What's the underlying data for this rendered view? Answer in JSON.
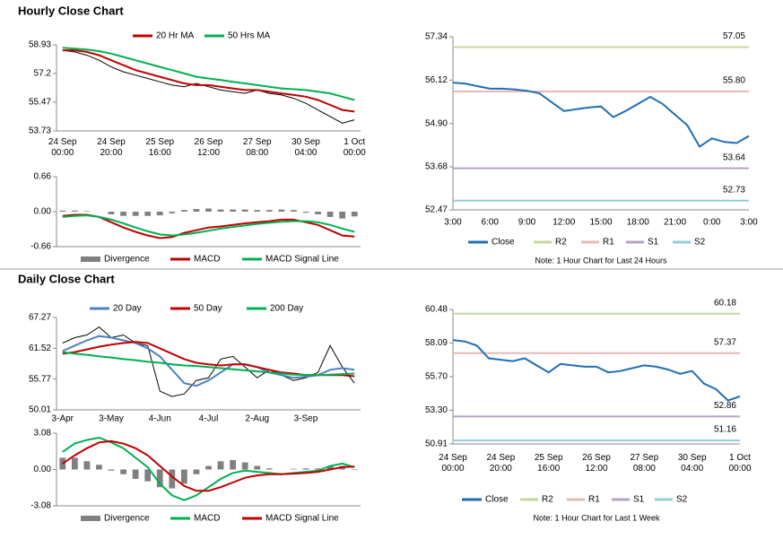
{
  "chart_data": [
    {
      "type": "line",
      "title": "Hourly Close Chart",
      "categories": [
        "24 Sep\n00:00",
        null,
        null,
        null,
        "24 Sep\n20:00",
        null,
        null,
        null,
        "25 Sep\n16:00",
        null,
        null,
        null,
        "26 Sep\n12:00",
        null,
        null,
        null,
        "27 Sep\n08:00",
        null,
        null,
        null,
        "30 Sep\n04:00",
        null,
        null,
        null,
        "1 Oct\n00:00"
      ],
      "ylim": [
        53.73,
        58.93
      ],
      "yticks": [
        53.73,
        55.47,
        57.2,
        58.93
      ],
      "series": [
        {
          "color": "#000000",
          "values": [
            58.6,
            58.5,
            58.3,
            58.0,
            57.6,
            57.3,
            57.1,
            56.9,
            56.7,
            56.5,
            56.4,
            56.6,
            56.4,
            56.2,
            56.1,
            56.0,
            56.2,
            56.0,
            55.9,
            55.7,
            55.4,
            55.0,
            54.6,
            54.2,
            54.4
          ]
        },
        {
          "name": "20 Hr MA",
          "color": "#c00000",
          "values": [
            58.6,
            58.6,
            58.5,
            58.3,
            58.0,
            57.7,
            57.4,
            57.2,
            57.0,
            56.8,
            56.6,
            56.5,
            56.5,
            56.4,
            56.3,
            56.2,
            56.2,
            56.1,
            56.0,
            55.9,
            55.8,
            55.6,
            55.3,
            55.0,
            54.9
          ]
        },
        {
          "name": "50 Hrs MA",
          "color": "#00b050",
          "values": [
            58.75,
            58.7,
            58.65,
            58.55,
            58.4,
            58.2,
            58.0,
            57.8,
            57.6,
            57.4,
            57.2,
            57.0,
            56.9,
            56.8,
            56.7,
            56.6,
            56.5,
            56.4,
            56.3,
            56.25,
            56.2,
            56.1,
            56.0,
            55.8,
            55.6
          ]
        }
      ]
    },
    {
      "type": "line",
      "ylim": [
        -0.66,
        0.66
      ],
      "yticks": [
        -0.66,
        {
          "value": 0,
          "label": "0.00"
        },
        0.66
      ],
      "series": [
        {
          "name": "Divergence",
          "kind": "bar",
          "color": "#808080",
          "values": [
            0.02,
            0.02,
            0.01,
            0,
            -0.05,
            -0.08,
            -0.08,
            -0.08,
            -0.07,
            -0.03,
            0.03,
            0.05,
            0.06,
            0.04,
            0.04,
            0.04,
            0.03,
            0.03,
            0.04,
            0.03,
            -0.02,
            -0.05,
            -0.1,
            -0.13,
            -0.09
          ]
        },
        {
          "name": "MACD",
          "color": "#c00000",
          "values": [
            -0.08,
            -0.06,
            -0.06,
            -0.1,
            -0.2,
            -0.3,
            -0.38,
            -0.45,
            -0.5,
            -0.48,
            -0.4,
            -0.35,
            -0.3,
            -0.28,
            -0.25,
            -0.22,
            -0.2,
            -0.18,
            -0.15,
            -0.15,
            -0.2,
            -0.25,
            -0.35,
            -0.45,
            -0.47
          ]
        },
        {
          "name": "MACD Signal Line",
          "color": "#00b050",
          "values": [
            -0.1,
            -0.08,
            -0.07,
            -0.1,
            -0.15,
            -0.22,
            -0.3,
            -0.37,
            -0.43,
            -0.45,
            -0.43,
            -0.4,
            -0.36,
            -0.32,
            -0.29,
            -0.26,
            -0.23,
            -0.21,
            -0.19,
            -0.18,
            -0.18,
            -0.2,
            -0.25,
            -0.32,
            -0.38
          ]
        }
      ]
    },
    {
      "type": "line",
      "note": "Note: 1 Hour Chart for Last 24 Hours",
      "categories": [
        "3:00",
        null,
        null,
        "6:00",
        null,
        null,
        "9:00",
        null,
        null,
        "12:00",
        null,
        null,
        "15:00",
        null,
        null,
        "18:00",
        null,
        null,
        "21:00",
        null,
        null,
        "0:00",
        null,
        null,
        "3:00"
      ],
      "ylim": [
        52.47,
        57.34
      ],
      "yticks": [
        52.47,
        53.68,
        {
          "value": 54.9,
          "label": "54.90"
        },
        56.12,
        57.34
      ],
      "series": [
        {
          "name": "Close",
          "color": "#1f6fb2",
          "values": [
            56.05,
            56.02,
            55.95,
            55.88,
            55.88,
            55.86,
            55.82,
            55.75,
            55.5,
            55.25,
            55.3,
            55.35,
            55.38,
            55.08,
            55.25,
            55.45,
            55.65,
            55.45,
            55.15,
            54.85,
            54.25,
            54.48,
            54.38,
            54.35,
            54.55
          ]
        }
      ],
      "levels": [
        {
          "name": "R2",
          "color": "#c4d79b",
          "value": 57.05,
          "label": "57.05"
        },
        {
          "name": "R1",
          "color": "#e6b9b8",
          "value": 55.8,
          "label": "55.80"
        },
        {
          "name": "S1",
          "color": "#b3a2c7",
          "value": 53.64,
          "label": "53.64"
        },
        {
          "name": "S2",
          "color": "#93cddd",
          "value": 52.73,
          "label": "52.73"
        }
      ]
    },
    {
      "type": "line",
      "title": "Daily Close Chart",
      "categories": [
        "3-Apr",
        null,
        null,
        null,
        "3-May",
        null,
        null,
        null,
        "4-Jun",
        null,
        null,
        null,
        "4-Jul",
        null,
        null,
        null,
        "2-Aug",
        null,
        null,
        null,
        "3-Sep",
        null,
        null,
        null,
        null
      ],
      "ylim": [
        50.01,
        67.27
      ],
      "yticks": [
        50.01,
        55.77,
        61.52,
        67.27
      ],
      "series": [
        {
          "color": "#000000",
          "values": [
            62.5,
            63.5,
            64.0,
            65.5,
            63.5,
            64.0,
            62.5,
            62.0,
            53.5,
            52.5,
            53.0,
            55.5,
            56.0,
            59.5,
            60.0,
            58.0,
            56.0,
            57.5,
            56.5,
            55.5,
            56.0,
            57.0,
            62.0,
            58.0,
            55.0
          ]
        },
        {
          "name": "20 Day",
          "color": "#4f81bd",
          "values": [
            61.0,
            62.0,
            63.0,
            63.8,
            63.5,
            63.0,
            62.5,
            61.5,
            60.0,
            57.5,
            55.0,
            54.5,
            55.5,
            57.0,
            58.5,
            58.5,
            58.0,
            57.0,
            56.5,
            56.0,
            56.2,
            56.5,
            57.5,
            57.8,
            57.5
          ]
        },
        {
          "name": "50 Day",
          "color": "#c00000",
          "values": [
            60.5,
            60.8,
            61.3,
            61.8,
            62.2,
            62.5,
            62.7,
            62.5,
            61.5,
            60.5,
            59.5,
            58.8,
            58.5,
            58.3,
            58.5,
            58.5,
            58.0,
            57.5,
            57.0,
            56.8,
            56.5,
            56.5,
            56.5,
            56.5,
            56.3
          ]
        },
        {
          "name": "200 Day",
          "color": "#00b050",
          "values": [
            60.8,
            60.5,
            60.3,
            60.0,
            59.8,
            59.5,
            59.3,
            59.0,
            58.8,
            58.5,
            58.3,
            58.2,
            58.0,
            57.8,
            57.6,
            57.4,
            57.2,
            57.0,
            56.8,
            56.6,
            56.5,
            56.5,
            56.6,
            56.7,
            56.8
          ]
        }
      ]
    },
    {
      "type": "line",
      "ylim": [
        -3.08,
        3.08
      ],
      "yticks": [
        -3.08,
        {
          "value": 0,
          "label": "0.00"
        },
        3.08
      ],
      "series": [
        {
          "name": "Divergence",
          "kind": "bar",
          "color": "#808080",
          "values": [
            1.0,
            1.0,
            0.7,
            0.4,
            -0.1,
            -0.4,
            -0.8,
            -1.0,
            -1.5,
            -1.6,
            -1.2,
            -0.4,
            0.3,
            0.7,
            0.8,
            0.6,
            0.3,
            0.1,
            0.0,
            0.05,
            0.1,
            0.1,
            0.3,
            0.3,
            -0.05
          ]
        },
        {
          "name": "MACD",
          "color": "#00b050",
          "values": [
            1.5,
            2.2,
            2.5,
            2.7,
            2.3,
            1.8,
            1.0,
            0.2,
            -1.2,
            -2.2,
            -2.6,
            -2.2,
            -1.5,
            -0.8,
            -0.3,
            -0.1,
            -0.2,
            -0.3,
            -0.4,
            -0.3,
            -0.2,
            -0.1,
            0.3,
            0.5,
            0.2
          ]
        },
        {
          "name": "MACD Signal Line",
          "color": "#c00000",
          "values": [
            0.5,
            1.2,
            1.8,
            2.3,
            2.4,
            2.2,
            1.8,
            1.2,
            0.3,
            -0.6,
            -1.4,
            -1.8,
            -1.8,
            -1.5,
            -1.1,
            -0.7,
            -0.5,
            -0.4,
            -0.4,
            -0.35,
            -0.3,
            -0.2,
            0.0,
            0.2,
            0.25
          ]
        }
      ]
    },
    {
      "type": "line",
      "note": "Note: 1 Hour Chart for Last 1 Week",
      "categories": [
        "24 Sep\n00:00",
        null,
        null,
        null,
        "24 Sep\n20:00",
        null,
        null,
        null,
        "25 Sep\n16:00",
        null,
        null,
        null,
        "26 Sep\n12:00",
        null,
        null,
        null,
        "27 Sep\n08:00",
        null,
        null,
        null,
        "30 Sep\n04:00",
        null,
        null,
        null,
        "1 Oct\n00:00"
      ],
      "ylim": [
        50.91,
        60.48
      ],
      "yticks": [
        50.91,
        {
          "value": 53.3,
          "label": "53.30"
        },
        {
          "value": 55.7,
          "label": "55.70"
        },
        58.09,
        60.48
      ],
      "series": [
        {
          "name": "Close",
          "color": "#1f6fb2",
          "values": [
            58.3,
            58.2,
            57.9,
            57.0,
            56.9,
            56.8,
            57.0,
            56.5,
            56.0,
            56.6,
            56.5,
            56.4,
            56.4,
            56.0,
            56.1,
            56.3,
            56.5,
            56.4,
            56.2,
            55.9,
            56.1,
            55.2,
            54.8,
            54.0,
            54.3
          ]
        }
      ],
      "levels": [
        {
          "name": "R2",
          "color": "#c4d79b",
          "value": 60.18,
          "label": "60.18"
        },
        {
          "name": "R1",
          "color": "#e6b9b8",
          "value": 57.37,
          "label": "57.37"
        },
        {
          "name": "S1",
          "color": "#b3a2c7",
          "value": 52.86,
          "label": "52.86"
        },
        {
          "name": "S2",
          "color": "#93cddd",
          "value": 51.16,
          "label": "51.16"
        }
      ]
    }
  ]
}
